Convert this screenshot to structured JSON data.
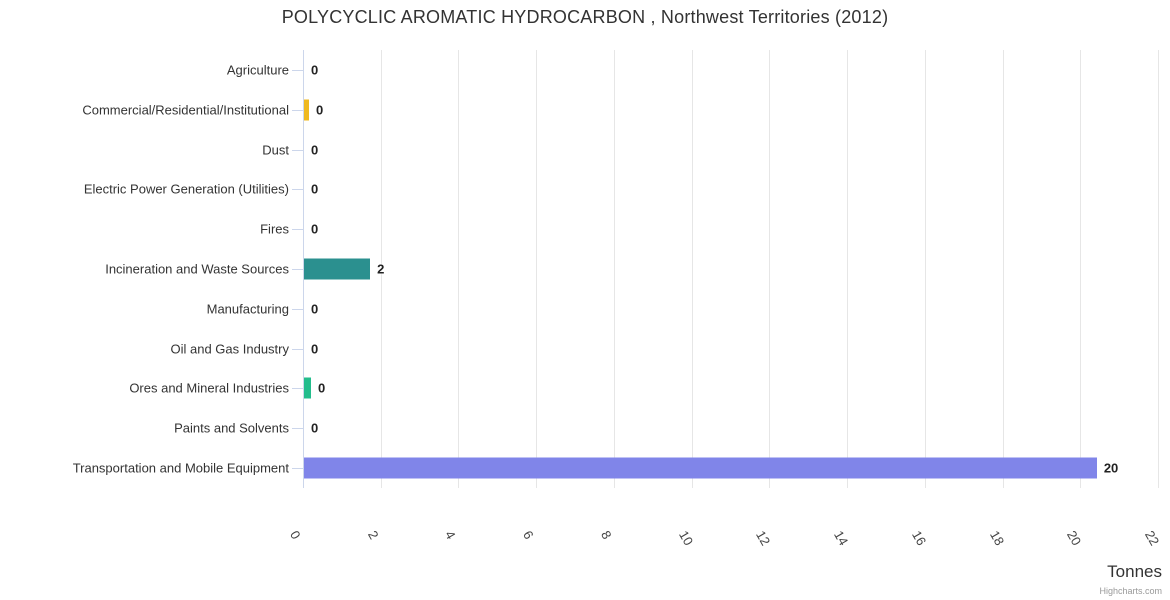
{
  "title": "POLYCYCLIC AROMATIC HYDROCARBON , Northwest Territories (2012)",
  "credit": "Highcharts.com",
  "chart_data": {
    "type": "bar",
    "orientation": "horizontal",
    "title": "POLYCYCLIC AROMATIC HYDROCARBON , Northwest Territories (2012)",
    "categories": [
      "Agriculture",
      "Commercial/Residential/Institutional",
      "Dust",
      "Electric Power Generation (Utilities)",
      "Fires",
      "Incineration and Waste Sources",
      "Manufacturing",
      "Oil and Gas Industry",
      "Ores and Mineral Industries",
      "Paints and Solvents",
      "Transportation and Mobile Equipment"
    ],
    "values": [
      0,
      0,
      0,
      0,
      0,
      2,
      0,
      0,
      0,
      0,
      20
    ],
    "bar_lengths_tonnes": [
      0,
      0.13,
      0,
      0,
      0,
      1.7,
      0,
      0,
      0.18,
      0,
      20.4
    ],
    "bar_colors": [
      null,
      "#efb920",
      null,
      null,
      null,
      "#2b908f",
      null,
      null,
      "#23bd8c",
      null,
      "#8085e9"
    ],
    "xlabel": "Tonnes",
    "x_ticks": [
      0,
      2,
      4,
      6,
      8,
      10,
      12,
      14,
      16,
      18,
      20,
      22
    ],
    "xlim": [
      0,
      22
    ],
    "grid": true,
    "legend": false,
    "colors": {
      "gridline": "#e6e6e6",
      "axis_line": "#ccd6eb",
      "text": "#333333",
      "value_label": "#222222",
      "credit_text": "#999999"
    }
  }
}
